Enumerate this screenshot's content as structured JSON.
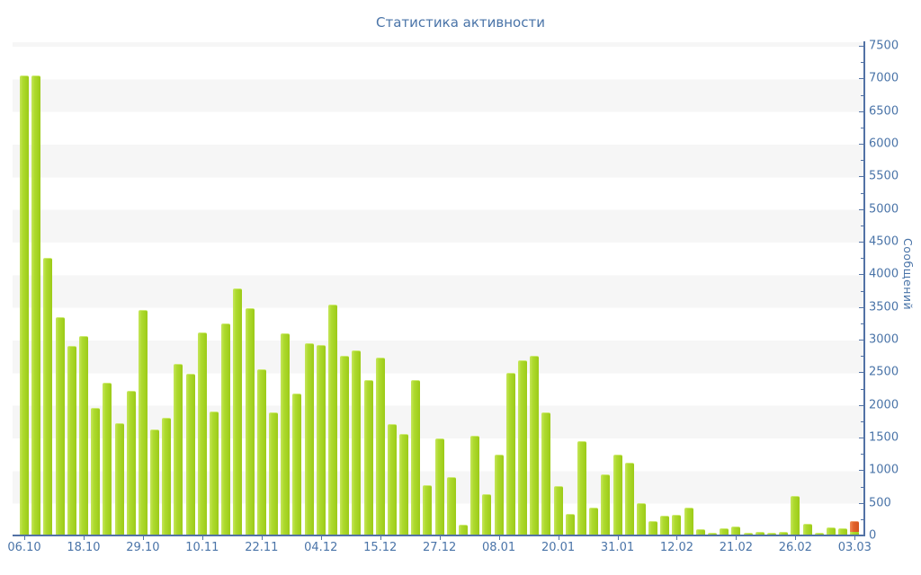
{
  "chart_data": {
    "type": "bar",
    "title": "Статистика активности",
    "ylabel": "Сообщений",
    "xlabel": "",
    "ylim": [
      0,
      7500
    ],
    "ytick_step": 500,
    "ytick_minor_step": 250,
    "grid": "alternating horizontal 500-unit bands (#f6f6f6 / #ffffff)",
    "legend_position": "none",
    "axis_color": "#5272a5",
    "text_color": "#4a74a8",
    "bar_color": "#aeda2e",
    "highlight_color": "#e2622b",
    "label_every_n_bars": 5,
    "categories": [
      "06.10",
      "18.10",
      "29.10",
      "10.11",
      "22.11",
      "04.12",
      "15.12",
      "27.12",
      "08.01",
      "20.01",
      "31.01",
      "12.02",
      "21.02",
      "26.02",
      "03.03"
    ],
    "values": [
      7050,
      7050,
      4250,
      3340,
      2910,
      3060,
      1950,
      2340,
      1720,
      2210,
      3460,
      1630,
      1800,
      2630,
      2480,
      3110,
      1900,
      3250,
      3790,
      3480,
      2550,
      1880,
      3090,
      2180,
      2950,
      2920,
      3540,
      2750,
      2830,
      2380,
      2720,
      1700,
      1550,
      2380,
      770,
      1480,
      900,
      170,
      1530,
      640,
      1240,
      2490,
      2690,
      2750,
      1890,
      760,
      335,
      1440,
      420,
      930,
      1240,
      1110,
      500,
      215,
      300,
      310,
      430,
      90,
      40,
      115,
      135,
      40,
      50,
      45,
      60,
      600,
      180,
      40,
      130,
      110,
      220
    ],
    "current_bar": {
      "index": 70,
      "base_value": 70,
      "highlight_value": 150,
      "note": "last bar (03.03) is green up to 70 with orange segment on top reaching 220"
    },
    "ytick_labels": [
      "0",
      "500",
      "1000",
      "1500",
      "2000",
      "2500",
      "3000",
      "3500",
      "4000",
      "4500",
      "5000",
      "5500",
      "6000",
      "6500",
      "7000",
      "7500"
    ]
  }
}
